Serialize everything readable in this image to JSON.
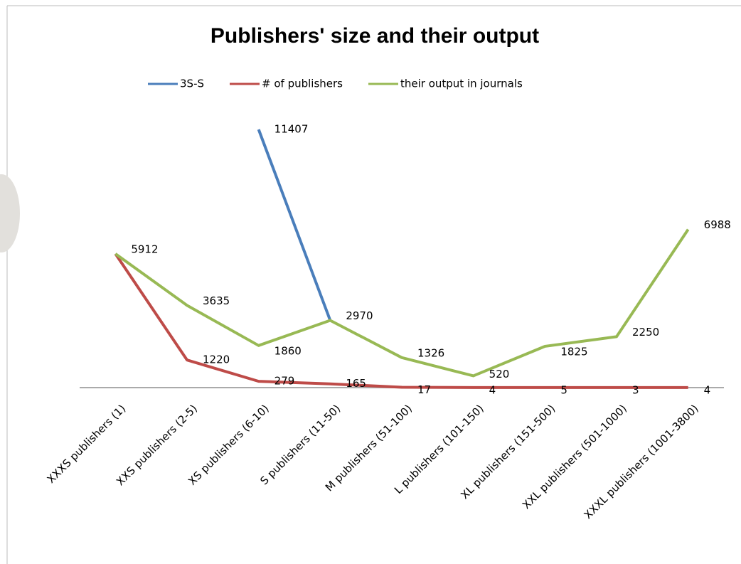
{
  "chart_data": {
    "type": "line",
    "title": "Publishers' size and their output",
    "categories": [
      "XXXS publishers (1)",
      "XXS publishers (2-5)",
      "XS publishers (6-10)",
      "S publishers (11-50)",
      "M publishers (51-100)",
      "L publishers (101-150)",
      "XL publishers (151-500)",
      "XXL publishers (501-1000)",
      "XXXL publishers (1001-3800)"
    ],
    "series": [
      {
        "name": "3S-S",
        "color": "#4a7ebb",
        "values": [
          null,
          null,
          11407,
          2970,
          null,
          null,
          null,
          null,
          null
        ]
      },
      {
        "name": "# of publishers",
        "color": "#be4b48",
        "values": [
          5912,
          1220,
          279,
          165,
          17,
          4,
          5,
          3,
          4
        ]
      },
      {
        "name": "their output in journals",
        "color": "#98b954",
        "values": [
          5912,
          3635,
          1860,
          2970,
          1326,
          520,
          1825,
          2250,
          6988
        ]
      }
    ],
    "legend": "top"
  }
}
